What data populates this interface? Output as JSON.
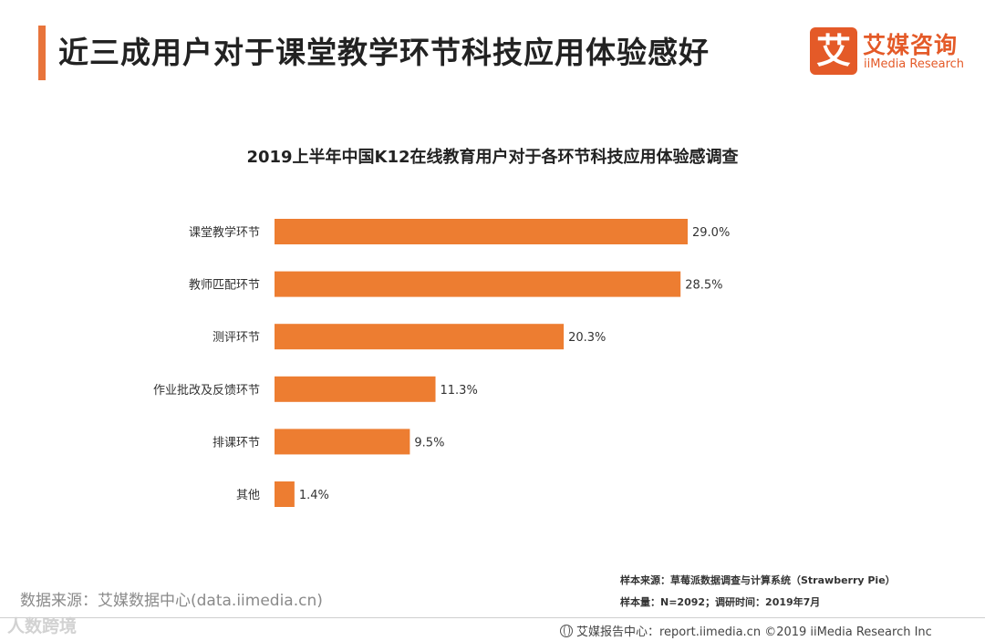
{
  "header": {
    "title": "近三成用户对于课堂教学环节科技应用体验感好"
  },
  "logo": {
    "glyph": "艾",
    "name_cn": "艾媒咨询",
    "name_en": "iiMedia Research"
  },
  "colors": {
    "accent": "#e8743b",
    "bar": "#ed7d31",
    "brand": "#e45a28"
  },
  "chart_data": {
    "type": "bar",
    "orientation": "horizontal",
    "title": "2019上半年中国K12在线教育用户对于各环节科技应用体验感调查",
    "categories": [
      "课堂教学环节",
      "教师匹配环节",
      "测评环节",
      "作业批改及反馈环节",
      "排课环节",
      "其他"
    ],
    "values": [
      29.0,
      28.5,
      20.3,
      11.3,
      9.5,
      1.4
    ],
    "value_labels": [
      "29.0%",
      "28.5%",
      "20.3%",
      "11.3%",
      "9.5%",
      "1.4%"
    ],
    "unit": "%",
    "xlabel": "",
    "ylabel": "",
    "xlim": [
      0,
      29
    ],
    "grid": false,
    "legend": "none"
  },
  "source": {
    "left": "数据来源：艾媒数据中心(data.iimedia.cn)",
    "sample_source": "样本来源：草莓派数据调查与计算系统（Strawberry  Pie）",
    "sample_size": "样本量：N=2092；调研时间：2019年7月",
    "watermark": "人数跨境"
  },
  "footer": {
    "text": "艾媒报告中心：report.iimedia.cn  ©2019  iiMedia Research  Inc"
  }
}
